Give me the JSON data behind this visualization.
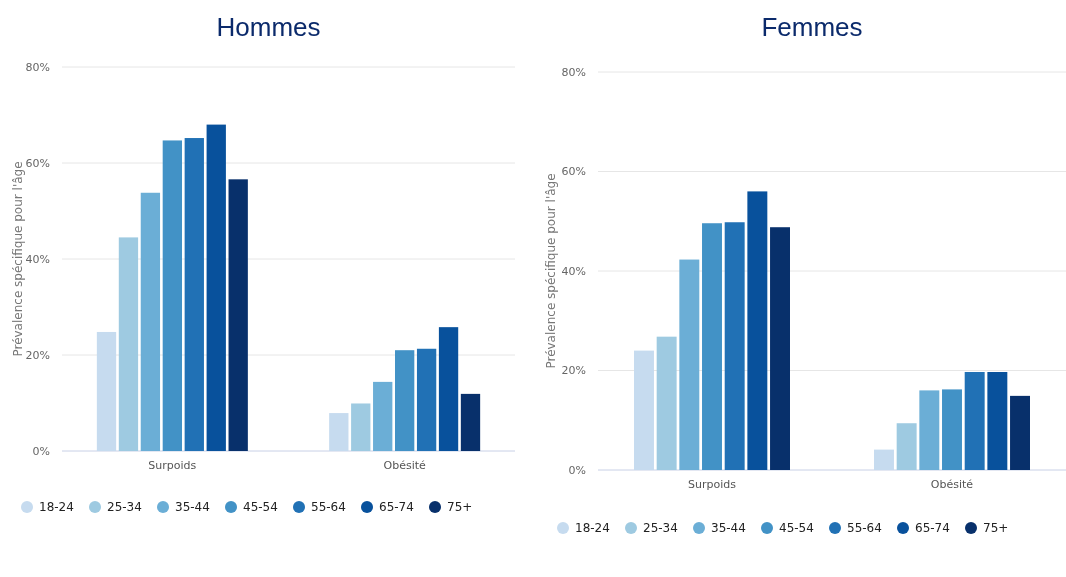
{
  "chart_data": [
    {
      "type": "bar",
      "title": "Hommes",
      "ylabel": "Prévalence spécifique pour l'âge",
      "categories": [
        "Surpoids",
        "Obésité"
      ],
      "ylim": [
        0,
        80
      ],
      "yticks": [
        {
          "value": 0,
          "label": "0%"
        },
        {
          "value": 20,
          "label": "20%"
        },
        {
          "value": 40,
          "label": "40%"
        },
        {
          "value": 60,
          "label": "60%"
        },
        {
          "value": 80,
          "label": "80%"
        }
      ],
      "grid": "y",
      "legend": "bottom",
      "series": [
        {
          "name": "18-24",
          "color": "#c6dbef",
          "values": [
            24.8,
            7.9
          ]
        },
        {
          "name": "25-34",
          "color": "#9ecae1",
          "values": [
            44.5,
            9.9
          ]
        },
        {
          "name": "35-44",
          "color": "#6baed6",
          "values": [
            53.8,
            14.4
          ]
        },
        {
          "name": "45-54",
          "color": "#4292c6",
          "values": [
            64.7,
            21.0
          ]
        },
        {
          "name": "55-64",
          "color": "#2171b5",
          "values": [
            65.2,
            21.3
          ]
        },
        {
          "name": "65-74",
          "color": "#08519c",
          "values": [
            68,
            25.8
          ]
        },
        {
          "name": "75+",
          "color": "#08306b",
          "values": [
            56.6,
            11.9
          ]
        }
      ]
    },
    {
      "type": "bar",
      "title": "Femmes",
      "ylabel": "Prévalence spécifique pour l'âge",
      "categories": [
        "Surpoids",
        "Obésité"
      ],
      "ylim": [
        0,
        80
      ],
      "yticks": [
        {
          "value": 0,
          "label": "0%"
        },
        {
          "value": 20,
          "label": "20%"
        },
        {
          "value": 40,
          "label": "40%"
        },
        {
          "value": 60,
          "label": "60%"
        },
        {
          "value": 80,
          "label": "80%"
        }
      ],
      "grid": "y",
      "legend": "bottom",
      "series": [
        {
          "name": "18-24",
          "color": "#c6dbef",
          "values": [
            24.0,
            4.1
          ]
        },
        {
          "name": "25-34",
          "color": "#9ecae1",
          "values": [
            26.8,
            9.4
          ]
        },
        {
          "name": "35-44",
          "color": "#6baed6",
          "values": [
            42.3,
            16.0
          ]
        },
        {
          "name": "45-54",
          "color": "#4292c6",
          "values": [
            49.6,
            16.2
          ]
        },
        {
          "name": "55-64",
          "color": "#2171b5",
          "values": [
            49.8,
            19.7
          ]
        },
        {
          "name": "65-74",
          "color": "#08519c",
          "values": [
            56.0,
            19.7
          ]
        },
        {
          "name": "75+",
          "color": "#08306b",
          "values": [
            48.8,
            14.9
          ]
        }
      ]
    }
  ]
}
